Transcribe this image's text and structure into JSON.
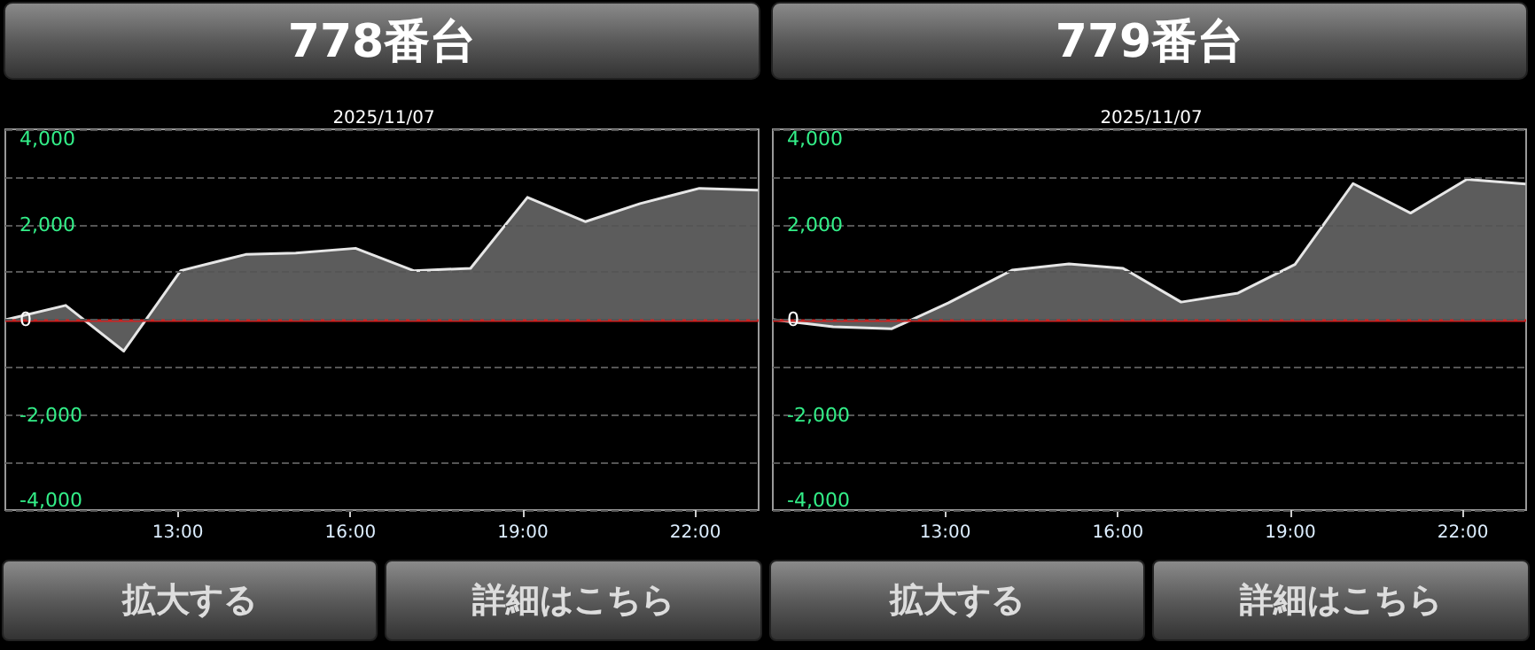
{
  "chart_data": [
    {
      "type": "area",
      "title": "778番台",
      "subtitle": "2025/11/07",
      "x": [
        10.01,
        11.05,
        12.06,
        13.05,
        14.18,
        15.05,
        16.09,
        17.1,
        18.09,
        19.08,
        20.09,
        21.04,
        22.07,
        23.09
      ],
      "series": [
        {
          "color": "#e6e6e6",
          "values": [
            0,
            300,
            -660,
            1030,
            1370,
            1400,
            1500,
            1030,
            1080,
            2570,
            2060,
            2440,
            2760,
            2720
          ]
        }
      ],
      "xlim": [
        10,
        23.1
      ],
      "xticks": [
        {
          "value": 13,
          "label": "13:00"
        },
        {
          "value": 16,
          "label": "16:00"
        },
        {
          "value": 19,
          "label": "19:00"
        },
        {
          "value": 22,
          "label": "22:00"
        }
      ],
      "ylim": [
        -4000,
        4000
      ],
      "yticks": [
        {
          "value": -4000,
          "label": "-4,000"
        },
        {
          "value": -3000,
          "label": null
        },
        {
          "value": -2000,
          "label": "-2,000"
        },
        {
          "value": -1000,
          "label": null
        },
        {
          "value": 0,
          "label": "0"
        },
        {
          "value": 1000,
          "label": null
        },
        {
          "value": 2000,
          "label": "2,000"
        },
        {
          "value": 3000,
          "label": null
        },
        {
          "value": 4000,
          "label": "4,000"
        }
      ],
      "grid": "y",
      "marker": "none",
      "ref_lines": [
        {
          "axis": "y",
          "value": 0,
          "color": "#cc2222"
        }
      ],
      "annotations": [
        "拡大する",
        "詳細はこちら"
      ]
    },
    {
      "type": "area",
      "title": "779番台",
      "subtitle": "2025/11/07",
      "x": [
        10.01,
        11.05,
        12.07,
        13.05,
        14.16,
        15.15,
        16.09,
        17.1,
        18.09,
        19.08,
        20.09,
        21.09,
        22.07,
        23.09
      ],
      "series": [
        {
          "color": "#e6e6e6",
          "values": [
            0,
            -150,
            -190,
            350,
            1040,
            1170,
            1080,
            370,
            560,
            1160,
            2860,
            2240,
            2950,
            2850
          ]
        }
      ],
      "xlim": [
        10,
        23.1
      ],
      "xticks": [
        {
          "value": 13,
          "label": "13:00"
        },
        {
          "value": 16,
          "label": "16:00"
        },
        {
          "value": 19,
          "label": "19:00"
        },
        {
          "value": 22,
          "label": "22:00"
        }
      ],
      "ylim": [
        -4000,
        4000
      ],
      "yticks": [
        {
          "value": -4000,
          "label": "-4,000"
        },
        {
          "value": -3000,
          "label": null
        },
        {
          "value": -2000,
          "label": "-2,000"
        },
        {
          "value": -1000,
          "label": null
        },
        {
          "value": 0,
          "label": "0"
        },
        {
          "value": 1000,
          "label": null
        },
        {
          "value": 2000,
          "label": "2,000"
        },
        {
          "value": 3000,
          "label": null
        },
        {
          "value": 4000,
          "label": "4,000"
        }
      ],
      "grid": "y",
      "marker": "none",
      "ref_lines": [
        {
          "axis": "y",
          "value": 0,
          "color": "#cc2222"
        }
      ],
      "annotations": [
        "拡大する",
        "詳細はこちら"
      ]
    }
  ]
}
